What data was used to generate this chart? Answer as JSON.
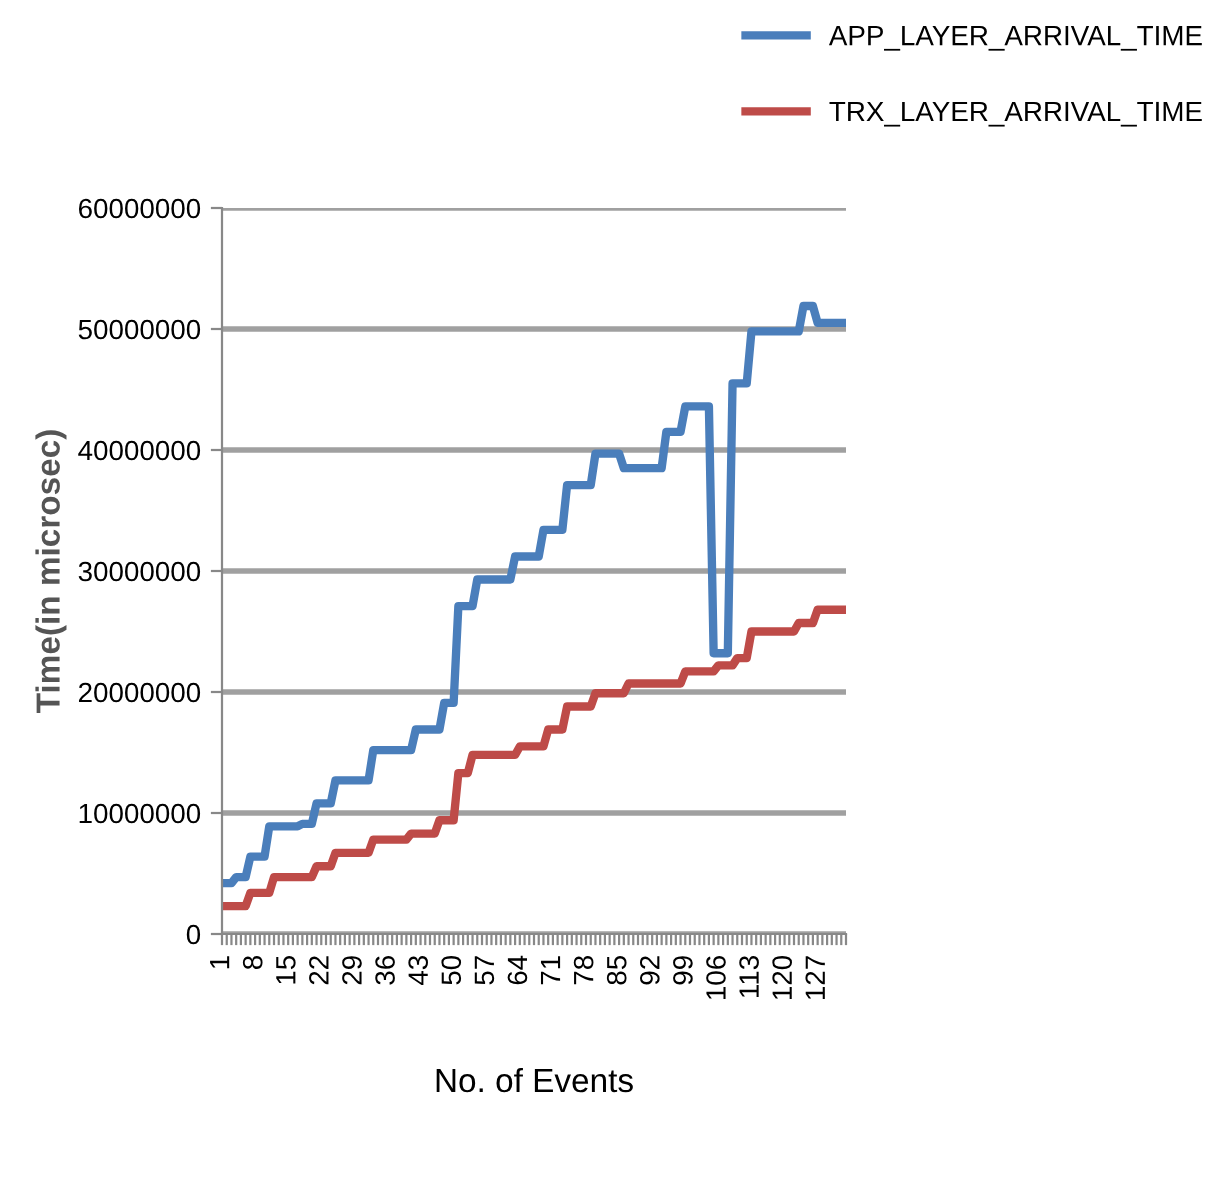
{
  "chart_data": {
    "type": "line",
    "xlabel": "No. of Events",
    "ylabel": "Time(in microsec)",
    "categories": [
      "1",
      null,
      null,
      null,
      null,
      null,
      null,
      "8",
      null,
      null,
      null,
      null,
      null,
      null,
      "15",
      null,
      null,
      null,
      null,
      null,
      null,
      "22",
      null,
      null,
      null,
      null,
      null,
      null,
      "29",
      null,
      null,
      null,
      null,
      null,
      null,
      "36",
      null,
      null,
      null,
      null,
      null,
      null,
      "43",
      null,
      null,
      null,
      null,
      null,
      null,
      "50",
      null,
      null,
      null,
      null,
      null,
      null,
      "57",
      null,
      null,
      null,
      null,
      null,
      null,
      "64",
      null,
      null,
      null,
      null,
      null,
      null,
      "71",
      null,
      null,
      null,
      null,
      null,
      null,
      "78",
      null,
      null,
      null,
      null,
      null,
      null,
      "85",
      null,
      null,
      null,
      null,
      null,
      null,
      "92",
      null,
      null,
      null,
      null,
      null,
      null,
      "99",
      null,
      null,
      null,
      null,
      null,
      null,
      "106",
      null,
      null,
      null,
      null,
      null,
      null,
      "113",
      null,
      null,
      null,
      null,
      null,
      null,
      "120",
      null,
      null,
      null,
      null,
      null,
      null,
      "127",
      null,
      null,
      null,
      null,
      null,
      null
    ],
    "series": [
      {
        "name": "APP_LAYER_ARRIVAL_TIME",
        "color": "#4a7ebb",
        "values": [
          4200000,
          4200000,
          4200000,
          4700000,
          4700000,
          4700000,
          6400000,
          6400000,
          6400000,
          6400000,
          8900000,
          8900000,
          8900000,
          8900000,
          8900000,
          8900000,
          8900000,
          9100000,
          9100000,
          9100000,
          10800000,
          10800000,
          10800000,
          10800000,
          12700000,
          12700000,
          12700000,
          12700000,
          12700000,
          12700000,
          12700000,
          12700000,
          15200000,
          15200000,
          15200000,
          15200000,
          15200000,
          15200000,
          15200000,
          15200000,
          15200000,
          16900000,
          16900000,
          16900000,
          16900000,
          16900000,
          16900000,
          19100000,
          19100000,
          19100000,
          27100000,
          27100000,
          27100000,
          27100000,
          29300000,
          29300000,
          29300000,
          29300000,
          29300000,
          29300000,
          29300000,
          29300000,
          31200000,
          31200000,
          31200000,
          31200000,
          31200000,
          31200000,
          33400000,
          33400000,
          33400000,
          33400000,
          33400000,
          37100000,
          37100000,
          37100000,
          37100000,
          37100000,
          37100000,
          39700000,
          39700000,
          39700000,
          39700000,
          39700000,
          39700000,
          38500000,
          38500000,
          38500000,
          38500000,
          38500000,
          38500000,
          38500000,
          38500000,
          38500000,
          41500000,
          41500000,
          41500000,
          41500000,
          43600000,
          43600000,
          43600000,
          43600000,
          43600000,
          43600000,
          23200000,
          23200000,
          23200000,
          23200000,
          45500000,
          45500000,
          45500000,
          45500000,
          49800000,
          49800000,
          49800000,
          49800000,
          49800000,
          49800000,
          49800000,
          49800000,
          49800000,
          49800000,
          49800000,
          51900000,
          51900000,
          51900000,
          50500000,
          50500000,
          50500000,
          50500000,
          50500000,
          50500000,
          50500000
        ]
      },
      {
        "name": "TRX_LAYER_ARRIVAL_TIME",
        "color": "#be4b48",
        "values": [
          2300000,
          2300000,
          2300000,
          2300000,
          2300000,
          2300000,
          3400000,
          3400000,
          3400000,
          3400000,
          3400000,
          4700000,
          4700000,
          4700000,
          4700000,
          4700000,
          4700000,
          4700000,
          4700000,
          4700000,
          5600000,
          5600000,
          5600000,
          5600000,
          6700000,
          6700000,
          6700000,
          6700000,
          6700000,
          6700000,
          6700000,
          6700000,
          7800000,
          7800000,
          7800000,
          7800000,
          7800000,
          7800000,
          7800000,
          7800000,
          8300000,
          8300000,
          8300000,
          8300000,
          8300000,
          8300000,
          9400000,
          9400000,
          9400000,
          9400000,
          13300000,
          13300000,
          13300000,
          14800000,
          14800000,
          14800000,
          14800000,
          14800000,
          14800000,
          14800000,
          14800000,
          14800000,
          14800000,
          15500000,
          15500000,
          15500000,
          15500000,
          15500000,
          15500000,
          16900000,
          16900000,
          16900000,
          16900000,
          18800000,
          18800000,
          18800000,
          18800000,
          18800000,
          18800000,
          19900000,
          19900000,
          19900000,
          19900000,
          19900000,
          19900000,
          19900000,
          20700000,
          20700000,
          20700000,
          20700000,
          20700000,
          20700000,
          20700000,
          20700000,
          20700000,
          20700000,
          20700000,
          20700000,
          21700000,
          21700000,
          21700000,
          21700000,
          21700000,
          21700000,
          21700000,
          22200000,
          22200000,
          22200000,
          22200000,
          22800000,
          22800000,
          22800000,
          25000000,
          25000000,
          25000000,
          25000000,
          25000000,
          25000000,
          25000000,
          25000000,
          25000000,
          25000000,
          25700000,
          25700000,
          25700000,
          25700000,
          26800000,
          26800000,
          26800000,
          26800000,
          26800000,
          26800000,
          26800000
        ]
      }
    ],
    "ylim": [
      0,
      60000000
    ],
    "yticks": [
      0,
      10000000,
      20000000,
      30000000,
      40000000,
      50000000,
      60000000
    ],
    "grid": "y",
    "legend": "top right",
    "marker": "none",
    "line_style": "solid"
  }
}
